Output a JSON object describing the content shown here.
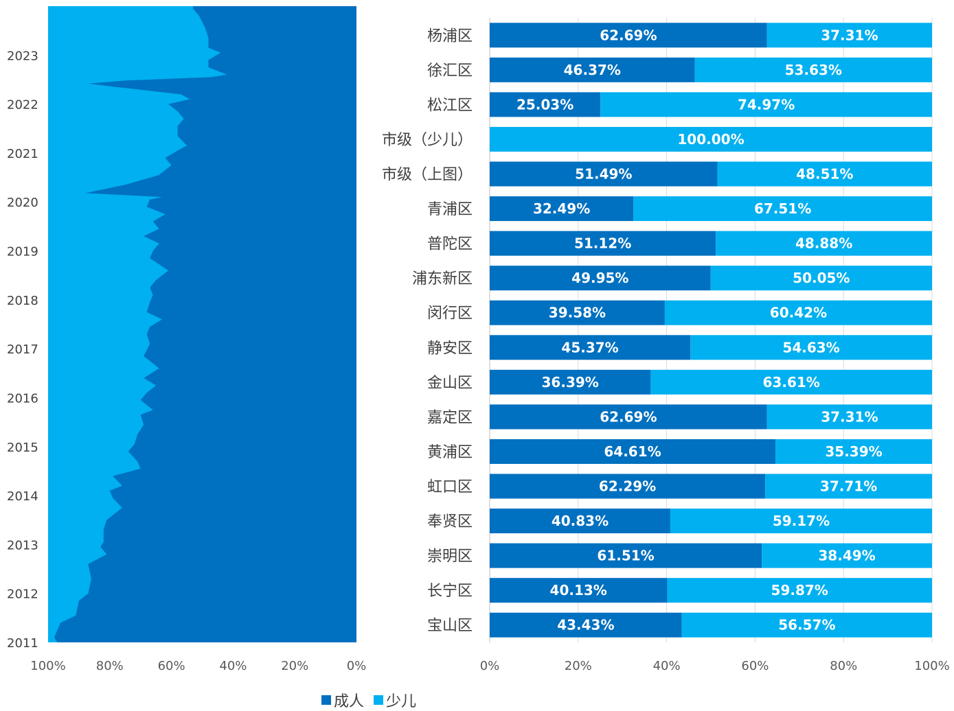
{
  "colors": {
    "adult": "#0070C0",
    "child": "#00B0F0",
    "grid": "#d9d9d9",
    "axis": "#bfbfbf"
  },
  "legend": [
    {
      "name": "成人",
      "color": "#0070C0"
    },
    {
      "name": "少儿",
      "color": "#00B0F0"
    }
  ],
  "chart_data": [
    {
      "type": "area",
      "stacked": "100%",
      "orientation": "horizontal",
      "x_axis": {
        "reversed": true,
        "range": [
          0,
          100
        ],
        "ticks": [
          "100%",
          "80%",
          "60%",
          "40%",
          "20%",
          "0%"
        ]
      },
      "y_axis": {
        "range": [
          2011,
          2024
        ],
        "ticks": [
          "2011",
          "2012",
          "2013",
          "2014",
          "2015",
          "2016",
          "2017",
          "2018",
          "2019",
          "2020",
          "2021",
          "2022",
          "2023"
        ]
      },
      "series": [
        {
          "name": "成人",
          "color": "#0070C0"
        },
        {
          "name": "少儿",
          "color": "#00B0F0"
        }
      ],
      "adult_share_by_year": [
        [
          2011.0,
          97
        ],
        [
          2011.1,
          98
        ],
        [
          2011.4,
          96
        ],
        [
          2011.55,
          91
        ],
        [
          2011.85,
          90
        ],
        [
          2012.0,
          87
        ],
        [
          2012.3,
          86
        ],
        [
          2012.6,
          87
        ],
        [
          2012.8,
          81
        ],
        [
          2012.95,
          83
        ],
        [
          2013.05,
          82
        ],
        [
          2013.3,
          82
        ],
        [
          2013.5,
          81
        ],
        [
          2013.75,
          76
        ],
        [
          2013.95,
          79
        ],
        [
          2014.1,
          80
        ],
        [
          2014.2,
          76
        ],
        [
          2014.4,
          79
        ],
        [
          2014.55,
          70
        ],
        [
          2014.7,
          71
        ],
        [
          2014.9,
          74
        ],
        [
          2015.05,
          72
        ],
        [
          2015.25,
          71
        ],
        [
          2015.45,
          69
        ],
        [
          2015.65,
          70
        ],
        [
          2015.75,
          66
        ],
        [
          2015.95,
          70
        ],
        [
          2016.1,
          68
        ],
        [
          2016.25,
          65
        ],
        [
          2016.4,
          69
        ],
        [
          2016.6,
          64
        ],
        [
          2016.85,
          69
        ],
        [
          2017.1,
          67
        ],
        [
          2017.3,
          68
        ],
        [
          2017.45,
          67
        ],
        [
          2017.6,
          63
        ],
        [
          2017.75,
          68
        ],
        [
          2017.95,
          67
        ],
        [
          2018.1,
          66
        ],
        [
          2018.25,
          67
        ],
        [
          2018.4,
          65
        ],
        [
          2018.6,
          61
        ],
        [
          2018.85,
          67
        ],
        [
          2019.0,
          66
        ],
        [
          2019.15,
          64
        ],
        [
          2019.3,
          69
        ],
        [
          2019.45,
          64
        ],
        [
          2019.6,
          66
        ],
        [
          2019.75,
          62
        ],
        [
          2019.9,
          68
        ],
        [
          2020.05,
          67
        ],
        [
          2020.1,
          63
        ],
        [
          2020.18,
          88
        ],
        [
          2020.35,
          75
        ],
        [
          2020.55,
          64
        ],
        [
          2020.75,
          60
        ],
        [
          2020.9,
          62
        ],
        [
          2021.05,
          58
        ],
        [
          2021.15,
          55
        ],
        [
          2021.35,
          58
        ],
        [
          2021.55,
          58
        ],
        [
          2021.7,
          56
        ],
        [
          2021.85,
          58
        ],
        [
          2022.0,
          61
        ],
        [
          2022.1,
          54
        ],
        [
          2022.2,
          57
        ],
        [
          2022.35,
          78
        ],
        [
          2022.42,
          87
        ],
        [
          2022.48,
          75
        ],
        [
          2022.55,
          47
        ],
        [
          2022.6,
          42
        ],
        [
          2022.75,
          48
        ],
        [
          2022.9,
          48
        ],
        [
          2023.05,
          44
        ],
        [
          2023.15,
          48
        ],
        [
          2023.35,
          48
        ],
        [
          2023.55,
          49
        ],
        [
          2023.8,
          51
        ],
        [
          2023.95,
          53
        ],
        [
          2024.0,
          53
        ]
      ]
    },
    {
      "type": "bar",
      "stacked": "100%",
      "orientation": "horizontal",
      "x_axis": {
        "range": [
          0,
          100
        ],
        "ticks": [
          "0%",
          "20%",
          "40%",
          "60%",
          "80%",
          "100%"
        ]
      },
      "categories": [
        "杨浦区",
        "徐汇区",
        "松江区",
        "市级（少儿）",
        "市级（上图）",
        "青浦区",
        "普陀区",
        "浦东新区",
        "闵行区",
        "静安区",
        "金山区",
        "嘉定区",
        "黄浦区",
        "虹口区",
        "奉贤区",
        "崇明区",
        "长宁区",
        "宝山区"
      ],
      "series": [
        {
          "name": "成人",
          "color": "#0070C0",
          "values": [
            62.69,
            46.37,
            25.03,
            0,
            51.49,
            32.49,
            51.12,
            49.95,
            39.58,
            45.37,
            36.39,
            62.69,
            64.61,
            62.29,
            40.83,
            61.51,
            40.13,
            43.43
          ],
          "labels": [
            "62.69%",
            "46.37%",
            "25.03%",
            "",
            "51.49%",
            "32.49%",
            "51.12%",
            "49.95%",
            "39.58%",
            "45.37%",
            "36.39%",
            "62.69%",
            "64.61%",
            "62.29%",
            "40.83%",
            "61.51%",
            "40.13%",
            "43.43%"
          ]
        },
        {
          "name": "少儿",
          "color": "#00B0F0",
          "values": [
            37.31,
            53.63,
            74.97,
            100,
            48.51,
            67.51,
            48.88,
            50.05,
            60.42,
            54.63,
            63.61,
            37.31,
            35.39,
            37.71,
            59.17,
            38.49,
            59.87,
            56.57
          ],
          "labels": [
            "37.31%",
            "53.63%",
            "74.97%",
            "100.00%",
            "48.51%",
            "67.51%",
            "48.88%",
            "50.05%",
            "60.42%",
            "54.63%",
            "63.61%",
            "37.31%",
            "35.39%",
            "37.71%",
            "59.17%",
            "38.49%",
            "59.87%",
            "56.57%"
          ]
        }
      ]
    }
  ]
}
